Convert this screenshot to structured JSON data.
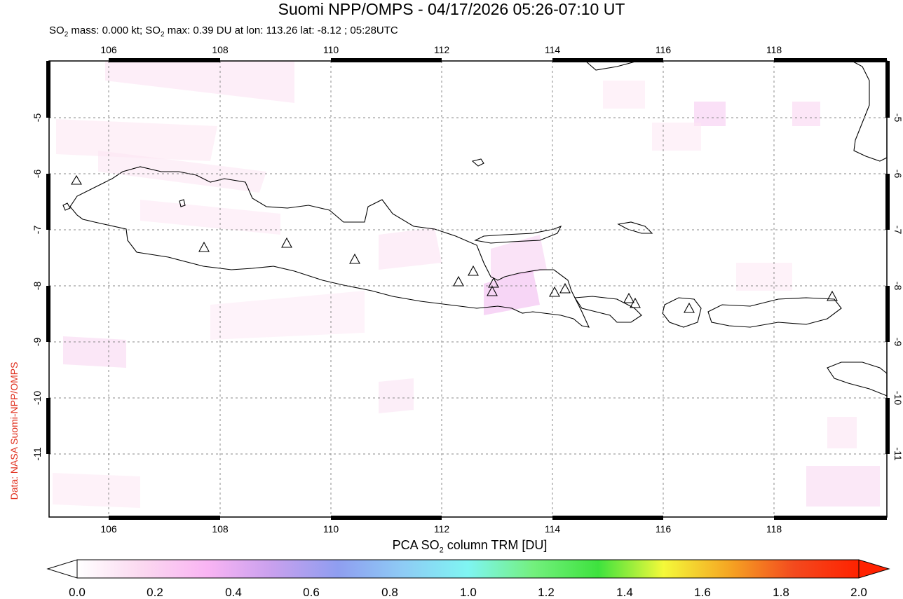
{
  "title": "Suomi NPP/OMPS - 04/17/2026 05:26-07:10 UT",
  "subtitle": {
    "p1": "SO",
    "p1_sub": "2",
    "p2": " mass: 0.000 kt; SO",
    "p2_sub": "2",
    "p3": " max: 0.39 DU at lon: 113.26 lat: -8.12 ; 05:28UTC"
  },
  "credit": "Data: NASA Suomi-NPP/OMPS",
  "map": {
    "lon_range": [
      105,
      120
    ],
    "lat_range": [
      -12,
      -4
    ],
    "lon_ticks": [
      "106",
      "108",
      "110",
      "112",
      "114",
      "116",
      "118"
    ],
    "lat_ticks": [
      "-5",
      "-6",
      "-7",
      "-8",
      "-9",
      "-10",
      "-11"
    ],
    "grid": "dashed",
    "volcano_icon": "triangle-outline"
  },
  "colorbar": {
    "title_p1": "PCA SO",
    "title_sub": "2",
    "title_p2": " column TRM [DU]",
    "ticks": [
      "0.0",
      "0.2",
      "0.4",
      "0.6",
      "0.8",
      "1.0",
      "1.2",
      "1.4",
      "1.6",
      "1.8",
      "2.0"
    ],
    "colors": [
      "#ffffff",
      "#fbd8f0",
      "#f9b4f3",
      "#c8a0ee",
      "#8f9ef0",
      "#8ecbf5",
      "#7ff5f2",
      "#73f07e",
      "#3ee23e",
      "#f4f93a",
      "#f5a623",
      "#f34a1e",
      "#ff2200"
    ]
  }
}
